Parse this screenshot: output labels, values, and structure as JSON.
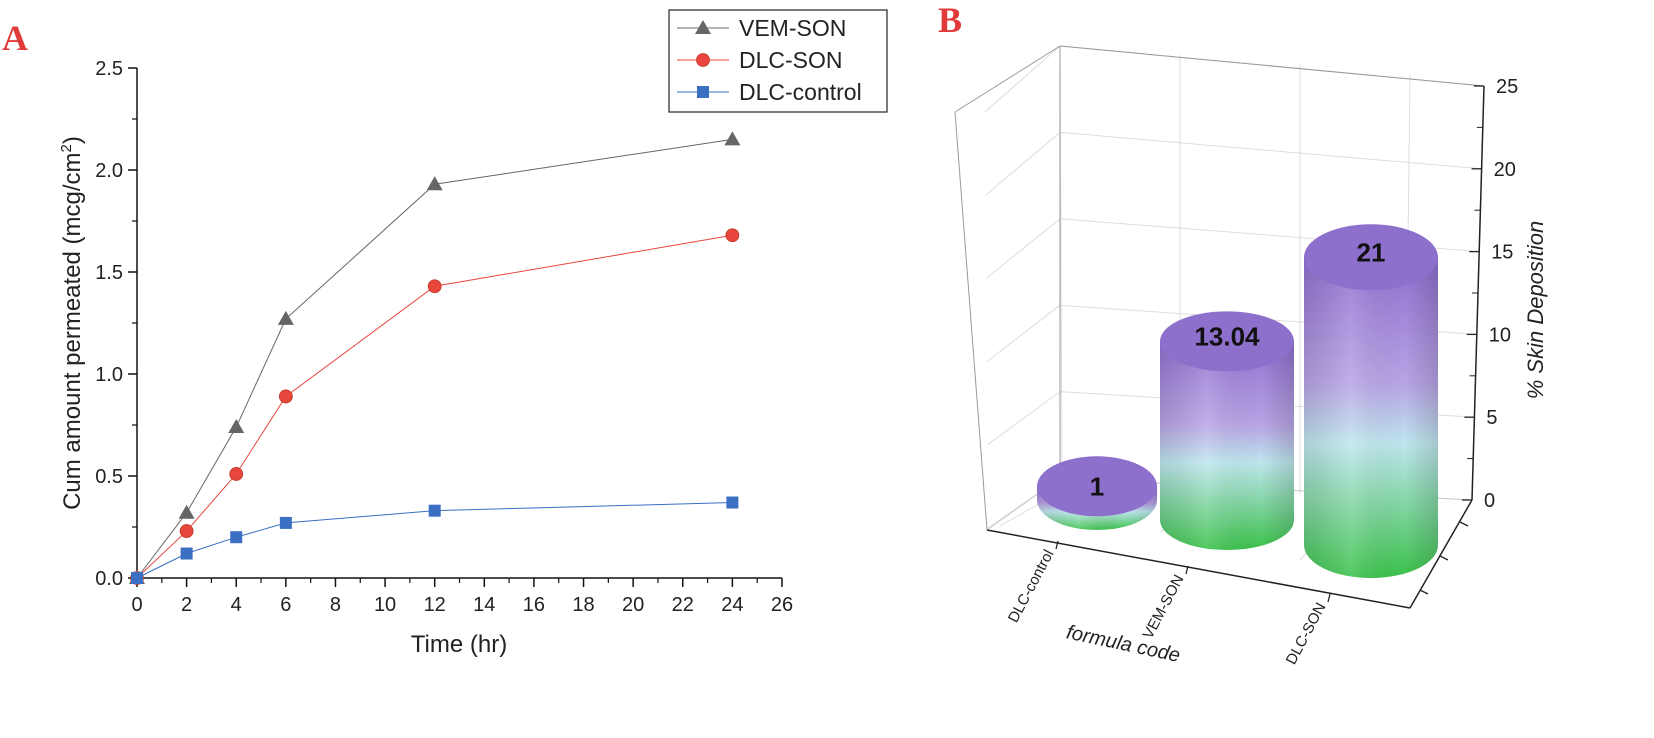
{
  "chart_data": [
    {
      "panel": "A",
      "type": "line",
      "xlabel": "Time (hr)",
      "ylabel_main": "Cum amount permeated (mcg/cm",
      "ylabel_sup": "2",
      "ylabel_end": ")",
      "xlim": [
        0,
        26
      ],
      "ylim": [
        0,
        2.5
      ],
      "xticks": [
        "0",
        "2",
        "4",
        "6",
        "8",
        "10",
        "12",
        "14",
        "16",
        "18",
        "20",
        "22",
        "24",
        "26"
      ],
      "yticks": [
        "0.0",
        "0.5",
        "1.0",
        "1.5",
        "2.0",
        "2.5"
      ],
      "grid": false,
      "legend_position": "top-right",
      "x": [
        0,
        2,
        4,
        6,
        12,
        24
      ],
      "series": [
        {
          "name": "VEM-SON",
          "marker": "triangle",
          "color": "#666666",
          "values": [
            0,
            0.32,
            0.74,
            1.27,
            1.93,
            2.15
          ]
        },
        {
          "name": "DLC-SON",
          "marker": "circle",
          "color": "#e8453c",
          "values": [
            0,
            0.23,
            0.51,
            0.89,
            1.43,
            1.68
          ]
        },
        {
          "name": "DLC-control",
          "marker": "square",
          "color": "#3a6fc4",
          "values": [
            0,
            0.12,
            0.2,
            0.27,
            0.33,
            0.37
          ]
        }
      ]
    },
    {
      "panel": "B",
      "type": "bar",
      "style": "3d-cylinder",
      "categories": [
        "DLC-control",
        "VEM-SON",
        "DLC-SON"
      ],
      "values": [
        1,
        13.04,
        21
      ],
      "value_labels": [
        "1",
        "13.04",
        "21"
      ],
      "xlabel": "formula code",
      "ylabel": "% Skin Deposition",
      "ylim": [
        0,
        25
      ],
      "yticks": [
        "0",
        "5",
        "10",
        "15",
        "20",
        "25"
      ],
      "grid": true,
      "colors": {
        "top": "#8f6fd0",
        "mid": "#bfe7ef",
        "bottom": "#3bc24a"
      }
    }
  ]
}
